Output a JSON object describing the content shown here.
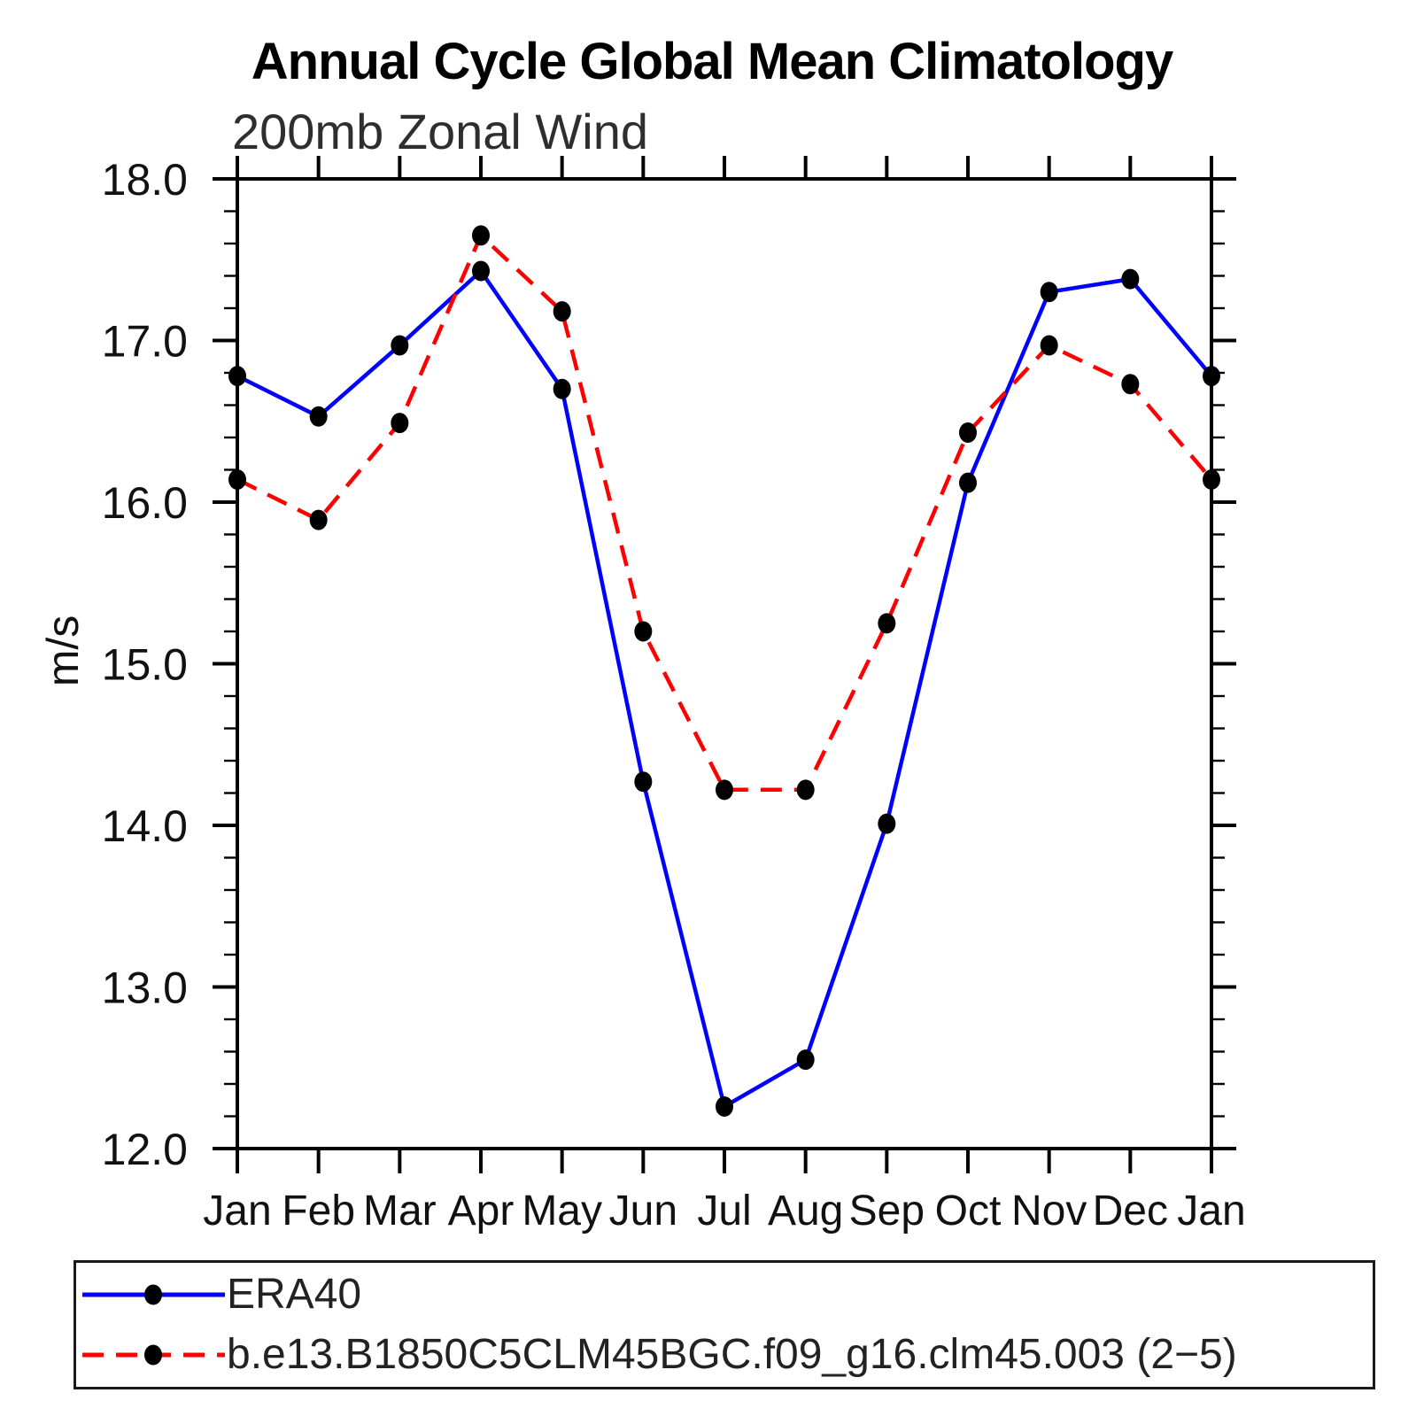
{
  "title": "Annual Cycle Global Mean Climatology",
  "subtitle": "200mb Zonal Wind",
  "chart_data": {
    "type": "line",
    "title": "Annual Cycle Global Mean Climatology",
    "subtitle": "200mb Zonal Wind",
    "xlabel": "",
    "ylabel": "m/s",
    "ylim": [
      12.0,
      18.0
    ],
    "ytick_major_step": 1.0,
    "ytick_minor_step": 0.2,
    "ytick_labels": [
      "12.0",
      "13.0",
      "14.0",
      "15.0",
      "16.0",
      "17.0",
      "18.0"
    ],
    "grid": false,
    "legend_position": "bottom",
    "categories": [
      "Jan",
      "Feb",
      "Mar",
      "Apr",
      "May",
      "Jun",
      "Jul",
      "Aug",
      "Sep",
      "Oct",
      "Nov",
      "Dec",
      "Jan"
    ],
    "series": [
      {
        "name": "ERA40",
        "line_style": "solid",
        "color": "#0000FF",
        "marker": "filled-circle",
        "marker_color": "#000000",
        "values": [
          16.78,
          16.53,
          16.97,
          17.43,
          16.7,
          14.27,
          12.26,
          12.55,
          14.01,
          16.12,
          17.3,
          17.38,
          16.78
        ]
      },
      {
        "name": "b.e13.B1850C5CLM45BGC.f09_g16.clm45.003 (2−5)",
        "line_style": "dashed",
        "color": "#FF0000",
        "marker": "filled-circle",
        "marker_color": "#000000",
        "values": [
          16.14,
          15.89,
          16.49,
          17.65,
          17.18,
          15.2,
          14.22,
          14.22,
          15.25,
          16.43,
          16.97,
          16.73,
          16.14
        ]
      }
    ],
    "axis_color": "#000000",
    "tick_label_color": "#111111"
  }
}
